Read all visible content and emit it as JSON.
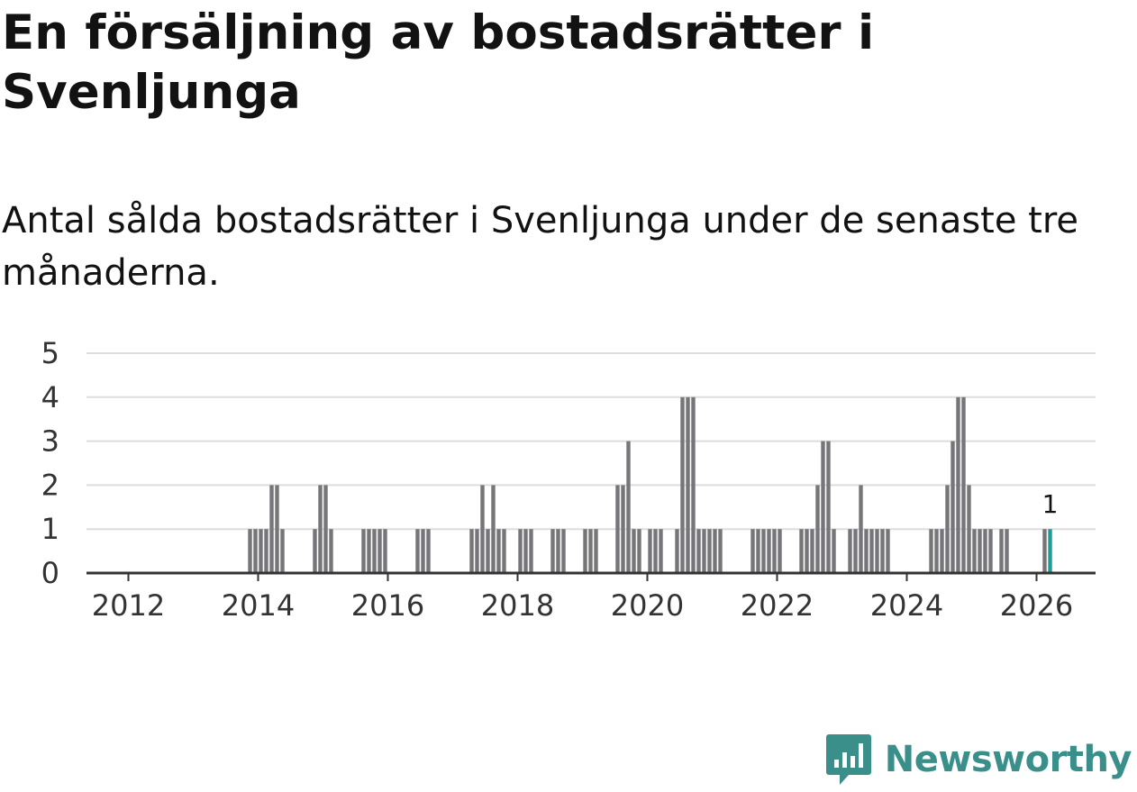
{
  "title": "En försäljning av bostadsrätter i Svenljunga",
  "subtitle": "Antal sålda bostadsrätter i Svenljunga under de senaste tre månaderna.",
  "brand": {
    "name": "Newsworthy",
    "icon": "newsworthy-logo-icon",
    "color": "#3b8f8b"
  },
  "colors": {
    "bar": "#76767a",
    "highlight": "#1a9e96",
    "grid": "#dddddd",
    "axis": "#333333"
  },
  "chart_data": {
    "type": "bar",
    "title": "En försäljning av bostadsrätter i Svenljunga",
    "subtitle": "Antal sålda bostadsrätter i Svenljunga under de senaste tre månaderna.",
    "xlabel": "",
    "ylabel": "",
    "ylim": [
      0,
      5
    ],
    "yticks": [
      "0",
      "1",
      "2",
      "3",
      "4",
      "5"
    ],
    "xticks": [
      "2012",
      "2014",
      "2016",
      "2018",
      "2020",
      "2022",
      "2024",
      "2026"
    ],
    "x_start": "2011-03",
    "categories": [
      "2011-03",
      "2011-04",
      "2011-05",
      "2011-06",
      "2011-07",
      "2011-08",
      "2011-09",
      "2011-10",
      "2011-11",
      "2011-12",
      "2012-01",
      "2012-02",
      "2012-03",
      "2012-04",
      "2012-05",
      "2012-06",
      "2012-07",
      "2012-08",
      "2012-09",
      "2012-10",
      "2012-11",
      "2012-12",
      "2013-01",
      "2013-02",
      "2013-03",
      "2013-04",
      "2013-05",
      "2013-06",
      "2013-07",
      "2013-08",
      "2013-09",
      "2013-10",
      "2013-11",
      "2013-12",
      "2014-01",
      "2014-02",
      "2014-03",
      "2014-04",
      "2014-05",
      "2014-06",
      "2014-07",
      "2014-08",
      "2014-09",
      "2014-10",
      "2014-11",
      "2014-12",
      "2015-01",
      "2015-02",
      "2015-03",
      "2015-04",
      "2015-05",
      "2015-06",
      "2015-07",
      "2015-08",
      "2015-09",
      "2015-10",
      "2015-11",
      "2015-12",
      "2016-01",
      "2016-02",
      "2016-03",
      "2016-04",
      "2016-05",
      "2016-06",
      "2016-07",
      "2016-08",
      "2016-09",
      "2016-10",
      "2016-11",
      "2016-12",
      "2017-01",
      "2017-02",
      "2017-03",
      "2017-04",
      "2017-05",
      "2017-06",
      "2017-07",
      "2017-08",
      "2017-09",
      "2017-10",
      "2017-11",
      "2017-12",
      "2018-01",
      "2018-02",
      "2018-03",
      "2018-04",
      "2018-05",
      "2018-06",
      "2018-07",
      "2018-08",
      "2018-09",
      "2018-10",
      "2018-11",
      "2018-12",
      "2019-01",
      "2019-02",
      "2019-03",
      "2019-04",
      "2019-05",
      "2019-06",
      "2019-07",
      "2019-08",
      "2019-09",
      "2019-10",
      "2019-11",
      "2019-12",
      "2020-01",
      "2020-02",
      "2020-03",
      "2020-04",
      "2020-05",
      "2020-06",
      "2020-07",
      "2020-08",
      "2020-09",
      "2020-10",
      "2020-11",
      "2020-12",
      "2021-01",
      "2021-02",
      "2021-03",
      "2021-04",
      "2021-05",
      "2021-06",
      "2021-07",
      "2021-08",
      "2021-09",
      "2021-10",
      "2021-11",
      "2021-12",
      "2022-01",
      "2022-02",
      "2022-03",
      "2022-04",
      "2022-05",
      "2022-06",
      "2022-07",
      "2022-08",
      "2022-09",
      "2022-10",
      "2022-11",
      "2022-12",
      "2023-01",
      "2023-02",
      "2023-03",
      "2023-04",
      "2023-05",
      "2023-06",
      "2023-07",
      "2023-08",
      "2023-09",
      "2023-10",
      "2023-11",
      "2023-12",
      "2024-01",
      "2024-02",
      "2024-03",
      "2024-04",
      "2024-05",
      "2024-06",
      "2024-07",
      "2024-08",
      "2024-09",
      "2024-10",
      "2024-11",
      "2024-12",
      "2025-01",
      "2025-02",
      "2025-03",
      "2025-04",
      "2025-05",
      "2025-06",
      "2025-07",
      "2025-08",
      "2025-09",
      "2025-10",
      "2025-11",
      "2025-12",
      "2026-01",
      "2026-02",
      "2026-03"
    ],
    "values": [
      0,
      0,
      0,
      0,
      0,
      0,
      0,
      0,
      0,
      0,
      0,
      0,
      0,
      0,
      0,
      0,
      0,
      0,
      0,
      0,
      0,
      0,
      0,
      0,
      0,
      0,
      0,
      0,
      0,
      0,
      0,
      0,
      1,
      1,
      1,
      1,
      2,
      2,
      1,
      0,
      0,
      0,
      0,
      0,
      1,
      2,
      2,
      1,
      0,
      0,
      0,
      0,
      0,
      1,
      1,
      1,
      1,
      1,
      0,
      0,
      0,
      0,
      0,
      1,
      1,
      1,
      0,
      0,
      0,
      0,
      0,
      0,
      0,
      1,
      1,
      2,
      1,
      2,
      1,
      1,
      0,
      0,
      1,
      1,
      1,
      0,
      0,
      0,
      1,
      1,
      1,
      0,
      0,
      0,
      1,
      1,
      1,
      0,
      0,
      0,
      2,
      2,
      3,
      1,
      1,
      0,
      1,
      1,
      1,
      0,
      0,
      1,
      4,
      4,
      4,
      1,
      1,
      1,
      1,
      1,
      0,
      0,
      0,
      0,
      0,
      1,
      1,
      1,
      1,
      1,
      1,
      0,
      0,
      0,
      1,
      1,
      1,
      2,
      3,
      3,
      1,
      0,
      0,
      1,
      1,
      2,
      1,
      1,
      1,
      1,
      1,
      0,
      0,
      0,
      0,
      0,
      0,
      0,
      1,
      1,
      1,
      2,
      3,
      4,
      4,
      2,
      1,
      1,
      1,
      1,
      0,
      1,
      1,
      0,
      0,
      0,
      0,
      0,
      0,
      1,
      1
    ],
    "highlight_index": 180,
    "data_labels": [
      {
        "index": 180,
        "text": "1"
      }
    ]
  }
}
